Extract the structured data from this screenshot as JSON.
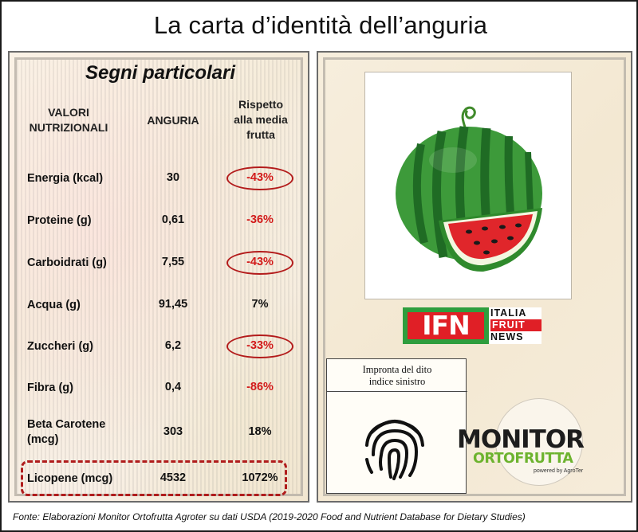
{
  "title": "La carta d’identità dell’anguria",
  "left": {
    "heading": "Segni particolari",
    "col_valori_1": "VALORI",
    "col_valori_2": "NUTRIZIONALI",
    "col_anguria": "ANGURIA",
    "col_rispetto_1": "Rispetto",
    "col_rispetto_2": "alla media",
    "col_rispetto_3": "frutta",
    "rows": [
      {
        "label": "Energia (kcal)",
        "value": "30",
        "pct": "-43%"
      },
      {
        "label": "Proteine (g)",
        "value": "0,61",
        "pct": "-36%"
      },
      {
        "label": "Carboidrati (g)",
        "value": "7,55",
        "pct": "-43%"
      },
      {
        "label": "Acqua (g)",
        "value": "91,45",
        "pct": "7%"
      },
      {
        "label": "Zuccheri (g)",
        "value": "6,2",
        "pct": "-33%"
      },
      {
        "label": "Fibra (g)",
        "value": "0,4",
        "pct": "-86%"
      },
      {
        "label_1": "Beta Carotene",
        "label_2": "(mcg)",
        "value": "303",
        "pct": "18%"
      },
      {
        "label": "Licopene (mcg)",
        "value": "4532",
        "pct": "1072%"
      }
    ]
  },
  "right": {
    "photo_icon": "watermelon-icon",
    "ifn": {
      "letters": "IFN",
      "line1": "ITALIA",
      "line2": "FRUIT",
      "line3": "NEWS"
    },
    "fingerprint_label_1": "Impronta del dito",
    "fingerprint_label_2": "indice sinistro",
    "fingerprint_icon": "fingerprint-icon",
    "monitor": {
      "top": "MONITOR",
      "bottom": "ORTOFRUTTA",
      "powered": "powered by AgroTer"
    }
  },
  "source": "Fonte: Elaborazioni Monitor Ortofrutta Agroter su dati USDA (2019-2020 Food and Nutrient Database for Dietary Studies)",
  "colors": {
    "negative": "#d21a1a",
    "highlight": "#b31b1b",
    "ifn_green": "#2e9e3e",
    "ifn_red": "#e01f26",
    "monitor_green": "#6db32f"
  }
}
